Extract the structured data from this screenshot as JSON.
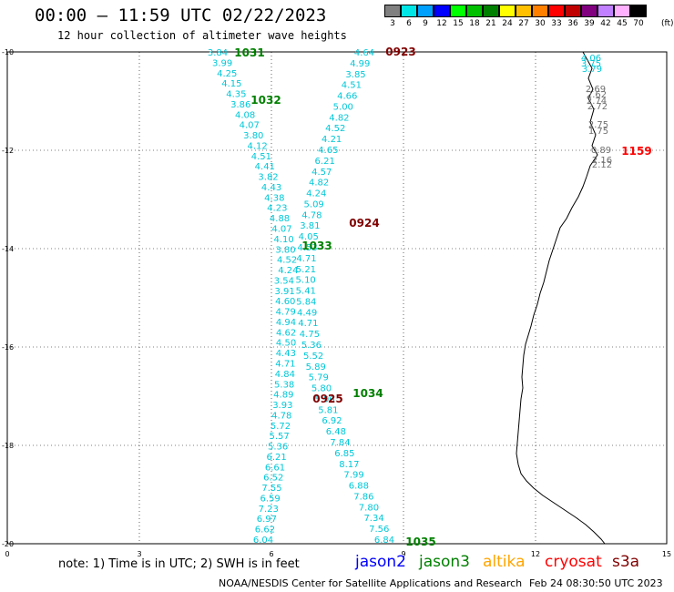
{
  "header": {
    "title": "00:00 – 11:59 UTC 02/22/2023",
    "subtitle": "12 hour collection of altimeter wave heights"
  },
  "legend": {
    "unit": "(ft)",
    "entries": [
      {
        "label": "3",
        "color": "#808080"
      },
      {
        "label": "6",
        "color": "#00e5e5"
      },
      {
        "label": "9",
        "color": "#00a0ff"
      },
      {
        "label": "12",
        "color": "#0000ff"
      },
      {
        "label": "15",
        "color": "#00ff00"
      },
      {
        "label": "18",
        "color": "#00c000"
      },
      {
        "label": "21",
        "color": "#008000"
      },
      {
        "label": "24",
        "color": "#ffff00"
      },
      {
        "label": "27",
        "color": "#ffc000"
      },
      {
        "label": "30",
        "color": "#ff8000"
      },
      {
        "label": "33",
        "color": "#ff0000"
      },
      {
        "label": "36",
        "color": "#c00000"
      },
      {
        "label": "39",
        "color": "#800080"
      },
      {
        "label": "42",
        "color": "#c080ff"
      },
      {
        "label": "45",
        "color": "#ffb0ff"
      },
      {
        "label": "70",
        "color": "#000000"
      }
    ]
  },
  "map": {
    "y_ticks": [
      "10",
      "12",
      "14",
      "16",
      "18",
      "20"
    ],
    "x_ticks": [
      "0",
      "3",
      "6",
      "9",
      "12",
      "15"
    ],
    "track_colors": {
      "swh": "#00c8d8",
      "gray": "#707070",
      "jason3": "#008000",
      "s3a": "#800000",
      "cryosat": "#ff0000"
    },
    "track_times": [
      {
        "t": "1031",
        "c": "jason3"
      },
      {
        "t": "1032",
        "c": "jason3"
      },
      {
        "t": "1033",
        "c": "jason3"
      },
      {
        "t": "1034",
        "c": "jason3"
      },
      {
        "t": "1035",
        "c": "jason3"
      },
      {
        "t": "0923",
        "c": "s3a"
      },
      {
        "t": "0924",
        "c": "s3a"
      },
      {
        "t": "0925",
        "c": "s3a"
      },
      {
        "t": "1159",
        "c": "cryosat"
      }
    ],
    "track_a": [
      "3.84",
      "3.99",
      "4.25",
      "4.15",
      "4.35",
      "3.86",
      "4.08",
      "4.07",
      "3.80",
      "4.12",
      "4.51",
      "4.41",
      "3.82",
      "4.43",
      "4.38",
      "4.23",
      "4.88",
      "4.07",
      "4.10",
      "3.80",
      "4.52",
      "4.24",
      "3.54",
      "3.91",
      "4.60",
      "4.79",
      "4.94",
      "4.62",
      "4.50",
      "4.43",
      "4.71",
      "4.84",
      "5.38",
      "4.89",
      "3.93",
      "4.78",
      "5.72",
      "5.57",
      "5.36",
      "6.21",
      "6.61",
      "6.52",
      "7.55",
      "6.59",
      "7.23",
      "6.97",
      "6.62",
      "6.04"
    ],
    "track_b": [
      "4.64",
      "4.99",
      "3.85",
      "4.51",
      "4.66",
      "5.00",
      "4.82",
      "4.52",
      "4.21",
      "4.65",
      "6.21",
      "4.57",
      "4.82",
      "4.24",
      "5.09",
      "4.78",
      "3.81",
      "4.05",
      "4.53",
      "4.71",
      "5.21",
      "5.10",
      "5.41",
      "5.84",
      "4.49",
      "4.71",
      "4.75",
      "5.36",
      "5.52",
      "5.89",
      "5.79",
      "5.80",
      "5.96",
      "5.81",
      "6.92",
      "6.48",
      "7.84",
      "6.85",
      "8.17",
      "7.99",
      "6.88",
      "7.86",
      "7.80",
      "7.34",
      "7.56",
      "6.84"
    ],
    "coast_swh": [
      "4.06",
      "3.75",
      "3.79"
    ],
    "coast_gray": [
      "2.69",
      "2.62",
      "2.74",
      "2.72",
      "2.75",
      "1.75",
      "0.89",
      "2.16",
      "2.12"
    ]
  },
  "footer": {
    "note": "note: 1) Time is in UTC; 2) SWH is in feet",
    "satellites": [
      {
        "name": "jason2",
        "color": "#0000ff"
      },
      {
        "name": "jason3",
        "color": "#008000"
      },
      {
        "name": "altika",
        "color": "#ffa500"
      },
      {
        "name": "cryosat",
        "color": "#ff0000"
      },
      {
        "name": "s3a",
        "color": "#800000"
      }
    ],
    "credit": "NOAA/NESDIS Center for Satellite Applications and Research",
    "timestamp": "Feb 24 08:30:50 UTC 2023"
  }
}
